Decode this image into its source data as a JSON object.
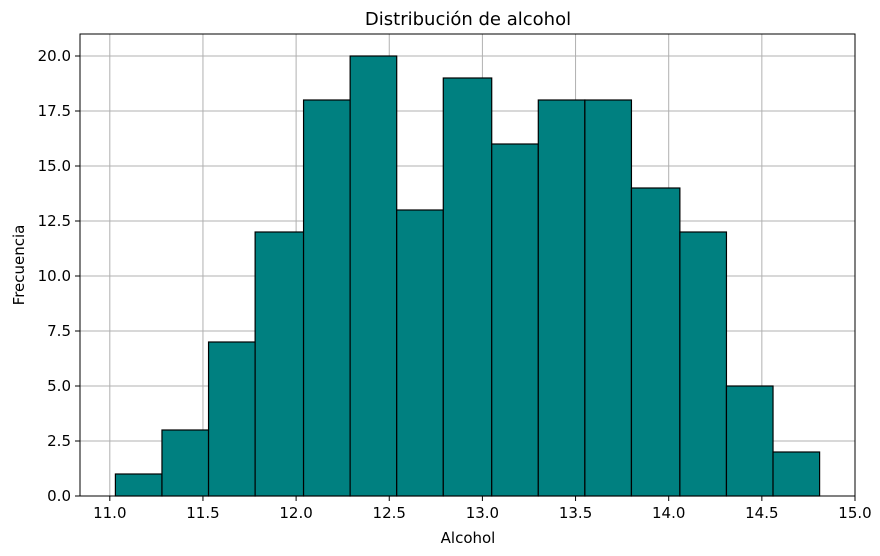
{
  "chart_data": {
    "type": "bar",
    "title": "Distribución de alcohol",
    "xlabel": "Alcohol",
    "ylabel": "Frecuencia",
    "bins": [
      [
        11.03,
        11.28
      ],
      [
        11.28,
        11.53
      ],
      [
        11.53,
        11.78
      ],
      [
        11.78,
        12.04
      ],
      [
        12.04,
        12.29
      ],
      [
        12.29,
        12.54
      ],
      [
        12.54,
        12.79
      ],
      [
        12.79,
        13.05
      ],
      [
        13.05,
        13.3
      ],
      [
        13.3,
        13.55
      ],
      [
        13.55,
        13.8
      ],
      [
        13.8,
        14.06
      ],
      [
        14.06,
        14.31
      ],
      [
        14.31,
        14.56
      ],
      [
        14.56,
        14.81
      ]
    ],
    "values": [
      1,
      3,
      7,
      12,
      18,
      20,
      13,
      19,
      16,
      18,
      18,
      14,
      12,
      5,
      2
    ],
    "xlim": [
      10.84,
      15.0
    ],
    "ylim": [
      0,
      21
    ],
    "xticks": [
      11.0,
      11.5,
      12.0,
      12.5,
      13.0,
      13.5,
      14.0,
      14.5,
      15.0
    ],
    "xtick_labels": [
      "11.0",
      "11.5",
      "12.0",
      "12.5",
      "13.0",
      "13.5",
      "14.0",
      "14.5",
      "15.0"
    ],
    "yticks": [
      0,
      2.5,
      5,
      7.5,
      10,
      12.5,
      15,
      17.5,
      20
    ],
    "ytick_labels": [
      "0.0",
      "2.5",
      "5.0",
      "7.5",
      "10.0",
      "12.5",
      "15.0",
      "17.5",
      "20.0"
    ],
    "grid": true,
    "bar_color": "#008080",
    "edge_color": "#000000"
  }
}
